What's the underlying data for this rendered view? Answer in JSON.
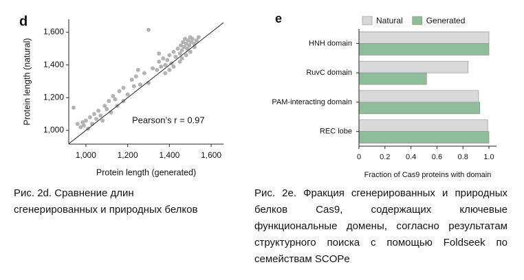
{
  "chart_data": [
    {
      "type": "scatter",
      "panel": "d",
      "xlabel": "Protein length (generated)",
      "ylabel": "Protein length (natural)",
      "annotation": "Pearson’s r = 0.97",
      "color": "#b3b3b3",
      "xlim": [
        918,
        1659
      ],
      "ylim": [
        916,
        1680
      ],
      "xticks": [
        {
          "value": 1000,
          "label": "1,000"
        },
        {
          "value": 1200,
          "label": "1,200"
        },
        {
          "value": 1400,
          "label": "1,400"
        },
        {
          "value": 1600,
          "label": "1,600"
        }
      ],
      "yticks": [
        {
          "value": 1000,
          "label": "1,000"
        },
        {
          "value": 1200,
          "label": "1,200"
        },
        {
          "value": 1400,
          "label": "1,400"
        },
        {
          "value": 1600,
          "label": "1,600"
        }
      ],
      "x": [
        960,
        975,
        985,
        990,
        1000,
        1010,
        1020,
        1030,
        1040,
        1050,
        1060,
        1070,
        1080,
        1090,
        1100,
        1110,
        1120,
        1130,
        1140,
        1150,
        1160,
        1180,
        1200,
        1220,
        1240,
        1260,
        1280,
        1300,
        1320,
        1340,
        1350,
        1360,
        1370,
        1380,
        1390,
        1400,
        1410,
        1420,
        1430,
        1440,
        1450,
        1455,
        1460,
        1465,
        1470,
        1475,
        1480,
        1485,
        1490,
        1495,
        1500,
        1505,
        1510,
        1520,
        1530,
        1540,
        1400,
        1380,
        1420,
        1460,
        1480,
        1500,
        941,
        1300,
        1180,
        1230,
        1250,
        1350,
        1450,
        1520
      ],
      "values": [
        1040,
        1020,
        1050,
        1030,
        1060,
        1010,
        1080,
        1040,
        1100,
        1070,
        1120,
        1090,
        1060,
        1150,
        1130,
        1180,
        1110,
        1210,
        1190,
        1150,
        1240,
        1260,
        1220,
        1310,
        1330,
        1280,
        1350,
        1290,
        1380,
        1370,
        1420,
        1390,
        1440,
        1400,
        1430,
        1460,
        1410,
        1480,
        1450,
        1500,
        1470,
        1520,
        1490,
        1540,
        1510,
        1560,
        1530,
        1500,
        1550,
        1520,
        1570,
        1540,
        1560,
        1530,
        1550,
        1570,
        1370,
        1350,
        1390,
        1440,
        1460,
        1480,
        1139,
        1615,
        1180,
        1270,
        1370,
        1470,
        1420,
        1510
      ]
    },
    {
      "type": "bar",
      "orientation": "horizontal",
      "panel": "e",
      "xlabel": "Fraction of Cas9 proteins with domain",
      "categories": [
        "HNH domain",
        "RuvC domain",
        "PAM-interacting domain",
        "REC lobe"
      ],
      "series": [
        {
          "name": "Natural",
          "color": "#d9d9d9",
          "values": [
            1.0,
            0.84,
            0.92,
            0.99
          ]
        },
        {
          "name": "Generated",
          "color": "#8fbc9a",
          "values": [
            1.0,
            0.52,
            0.93,
            1.0
          ]
        }
      ],
      "xlim": [
        0,
        1.058
      ],
      "xticks": [
        0,
        0.2,
        0.4,
        0.6,
        0.8,
        {
          "value": 1,
          "label": "1.0"
        }
      ],
      "legend": "top"
    }
  ],
  "captions": [
    "Рис. 2d. Сравнение длин сгенерированных и природных белков",
    "Рис. 2e. Фракция сгенерированных и природных белков Cas9, содержащих ключевые функциональные домены, согласно результатам структурного поиска с помощью Foldseek по семействам SCOPe"
  ]
}
